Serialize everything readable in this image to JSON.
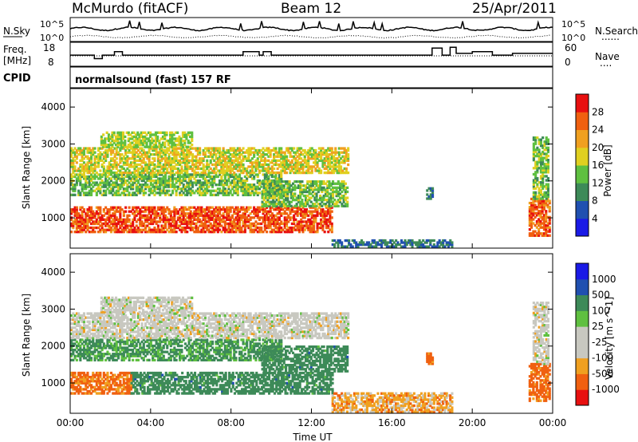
{
  "header": {
    "site": "McMurdo (fitACF)",
    "beam": "Beam 12",
    "date": "25/Apr/2011"
  },
  "panels": {
    "nsky": {
      "label": "N.Sky",
      "left_ticks": [
        "10^5",
        "10^0"
      ],
      "right_label": "N.Search",
      "right_label_style": "......",
      "right_ticks": [
        "10^5",
        "10^0"
      ]
    },
    "freq": {
      "label_line1": "Freq.",
      "label_line2": "[MHz]",
      "left_ticks": [
        "18",
        "8"
      ],
      "right_label": "Nave",
      "right_label_style": "....",
      "right_ticks": [
        "60",
        "0"
      ]
    },
    "cpid": {
      "label": "CPID",
      "value": "normalsound (fast) 157 RF"
    }
  },
  "colors": {
    "power": [
      "#1a1ae6",
      "#2050b0",
      "#3d8a58",
      "#5fc040",
      "#e0d020",
      "#f0a020",
      "#f06010",
      "#e81010"
    ],
    "velocity": [
      "#e81010",
      "#f06010",
      "#f0a020",
      "#c8c8c0",
      "#c8c8c0",
      "#5fc040",
      "#3d8a58",
      "#2050b0",
      "#1a1ae6"
    ],
    "ground_scatter": "#c0c0b8"
  },
  "chart_data": [
    {
      "type": "heatmap",
      "name": "power",
      "ylabel": "Slant Range [km]",
      "xlabel": "",
      "x_range_hours": [
        0,
        24
      ],
      "ylim": [
        180,
        4500
      ],
      "y_ticks": [
        1000,
        2000,
        3000,
        4000
      ],
      "x_ticks": [
        "00:00",
        "04:00",
        "08:00",
        "12:00",
        "16:00",
        "20:00",
        "00:00"
      ],
      "colorbar": {
        "label": "Power [dB]",
        "ticks": [
          "28",
          "24",
          "20",
          "16",
          "12",
          "8",
          "4"
        ],
        "range": [
          0,
          32
        ]
      },
      "regions": [
        {
          "t": [
            0.0,
            13.0
          ],
          "r": [
            600,
            1300
          ],
          "value": 27
        },
        {
          "t": [
            0.0,
            10.5
          ],
          "r": [
            1600,
            2200
          ],
          "value": 14
        },
        {
          "t": [
            0.0,
            13.8
          ],
          "r": [
            2200,
            2900
          ],
          "value": 18
        },
        {
          "t": [
            1.5,
            6.0
          ],
          "r": [
            2900,
            3300
          ],
          "value": 16
        },
        {
          "t": [
            9.5,
            13.8
          ],
          "r": [
            1300,
            2000
          ],
          "value": 14
        },
        {
          "t": [
            13.0,
            19.0
          ],
          "r": [
            200,
            400
          ],
          "value": 8
        },
        {
          "t": [
            17.7,
            18.0
          ],
          "r": [
            1500,
            1800
          ],
          "value": 8
        },
        {
          "t": [
            22.8,
            23.8
          ],
          "r": [
            500,
            1500
          ],
          "value": 26
        },
        {
          "t": [
            23.0,
            23.8
          ],
          "r": [
            1500,
            3200
          ],
          "value": 14
        }
      ]
    },
    {
      "type": "heatmap",
      "name": "velocity",
      "ylabel": "Slant Range [km]",
      "xlabel": "Time UT",
      "x_range_hours": [
        0,
        24
      ],
      "ylim": [
        180,
        4500
      ],
      "y_ticks": [
        1000,
        2000,
        3000,
        4000
      ],
      "x_ticks": [
        "00:00",
        "04:00",
        "08:00",
        "12:00",
        "16:00",
        "20:00",
        "00:00"
      ],
      "colorbar": {
        "label": "Velocity [m s^-1]",
        "ticks": [
          "1000",
          "500",
          "100",
          "25",
          "-25",
          "-100",
          "-500",
          "-1000"
        ]
      },
      "regions": [
        {
          "t": [
            0.0,
            3.0
          ],
          "r": [
            700,
            1300
          ],
          "value": -150
        },
        {
          "t": [
            3.0,
            13.0
          ],
          "r": [
            700,
            1300
          ],
          "value": 300
        },
        {
          "t": [
            0.0,
            10.5
          ],
          "r": [
            1600,
            2200
          ],
          "value": 150
        },
        {
          "t": [
            0.0,
            13.8
          ],
          "r": [
            2200,
            2900
          ],
          "value": 0
        },
        {
          "t": [
            1.5,
            6.0
          ],
          "r": [
            2900,
            3300
          ],
          "value": 0
        },
        {
          "t": [
            9.5,
            13.8
          ],
          "r": [
            1300,
            2000
          ],
          "value": 300
        },
        {
          "t": [
            13.0,
            19.0
          ],
          "r": [
            200,
            700
          ],
          "value": -60
        },
        {
          "t": [
            17.7,
            18.0
          ],
          "r": [
            1500,
            1800
          ],
          "value": -150
        },
        {
          "t": [
            22.8,
            23.8
          ],
          "r": [
            500,
            1500
          ],
          "value": -200
        },
        {
          "t": [
            23.0,
            23.8
          ],
          "r": [
            1500,
            3200
          ],
          "value": 0
        }
      ]
    }
  ]
}
